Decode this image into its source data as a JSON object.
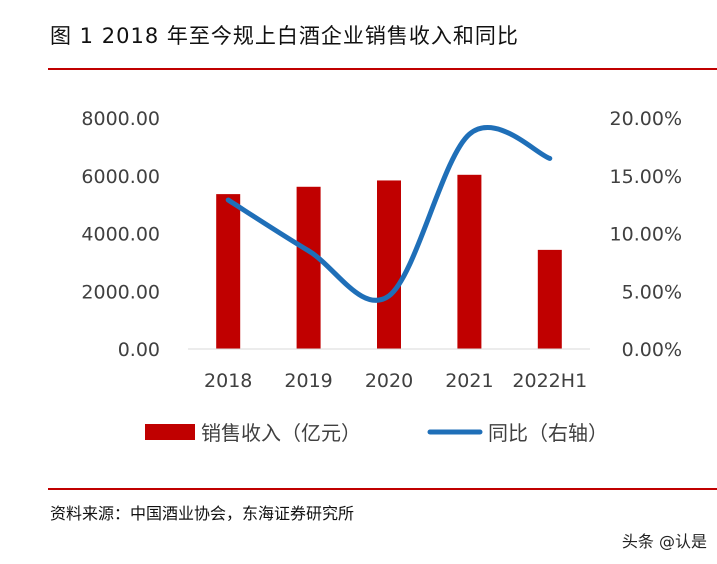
{
  "figure": {
    "label": "图 1",
    "title": "2018 年至今规上白酒企业销售收入和同比",
    "source": "资料来源：中国酒业协会，东海证券研究所",
    "watermark": "头条 @认是"
  },
  "colors": {
    "bar": "#c00000",
    "line": "#1f6fb8",
    "accent_rule": "#c00000"
  },
  "chart_data": {
    "type": "bar",
    "categories": [
      "2018",
      "2019",
      "2020",
      "2021",
      "2022H1"
    ],
    "series": [
      {
        "name": "销售收入（亿元）",
        "type": "bar",
        "axis": "left",
        "values": [
          5364,
          5618,
          5837,
          6033,
          3433
        ]
      },
      {
        "name": "同比（右轴）",
        "type": "line",
        "axis": "right",
        "values": [
          0.129,
          0.085,
          0.046,
          0.186,
          0.165
        ]
      }
    ],
    "y_left": {
      "min": 0,
      "max": 8000,
      "ticks": [
        "0.00",
        "2000.00",
        "4000.00",
        "6000.00",
        "8000.00"
      ]
    },
    "y_right": {
      "min": 0,
      "max": 0.2,
      "ticks": [
        "0.00%",
        "5.00%",
        "10.00%",
        "15.00%",
        "20.00%"
      ]
    },
    "legend": [
      {
        "label": "销售收入（亿元）",
        "kind": "bar"
      },
      {
        "label": "同比（右轴）",
        "kind": "line"
      }
    ],
    "grid": false
  }
}
